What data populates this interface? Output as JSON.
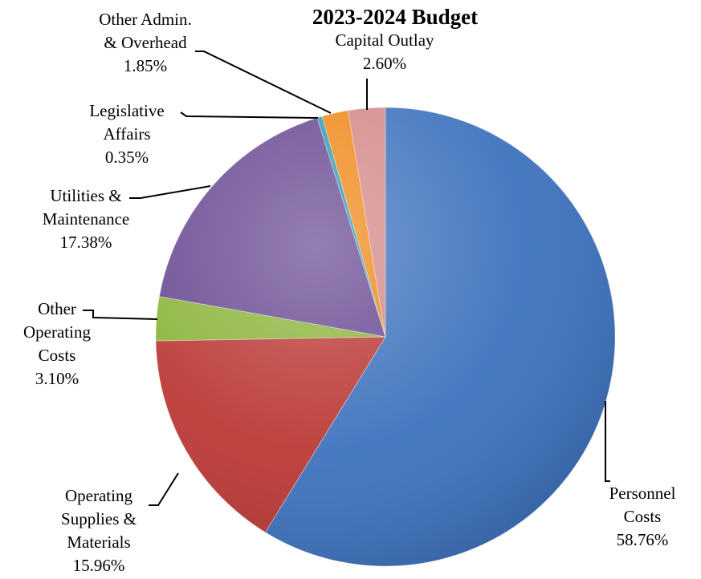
{
  "chart_data": {
    "type": "pie",
    "title": "2023-2024 Budget",
    "series": [
      {
        "name": "Personnel Costs",
        "label_lines": [
          "Personnel",
          "Costs",
          "58.76%"
        ],
        "value": 58.76,
        "color": "#3f73be"
      },
      {
        "name": "Operating Supplies & Materials",
        "label_lines": [
          "Operating",
          "Supplies &",
          "Materials",
          "15.96%"
        ],
        "value": 15.96,
        "color": "#bb3a36"
      },
      {
        "name": "Other Operating Costs",
        "label_lines": [
          "Other",
          "Operating",
          "Costs",
          "3.10%"
        ],
        "value": 3.1,
        "color": "#8bb43c"
      },
      {
        "name": "Utilities & Maintenance",
        "label_lines": [
          "Utilities &",
          "Maintenance",
          "17.38%"
        ],
        "value": 17.38,
        "color": "#6a4b93"
      },
      {
        "name": "Legislative Affairs",
        "label_lines": [
          "Legislative",
          "Affairs",
          "0.35%"
        ],
        "value": 0.35,
        "color": "#2f9bb5"
      },
      {
        "name": "Other Admin. & Overhead",
        "label_lines": [
          "Other Admin.",
          "& Overhead",
          "1.85%"
        ],
        "value": 1.85,
        "color": "#ef8a1c"
      },
      {
        "name": "Capital Outlay",
        "label_lines": [
          "Capital Outlay",
          "2.60%"
        ],
        "value": 2.6,
        "color": "#d48a8a"
      }
    ]
  }
}
